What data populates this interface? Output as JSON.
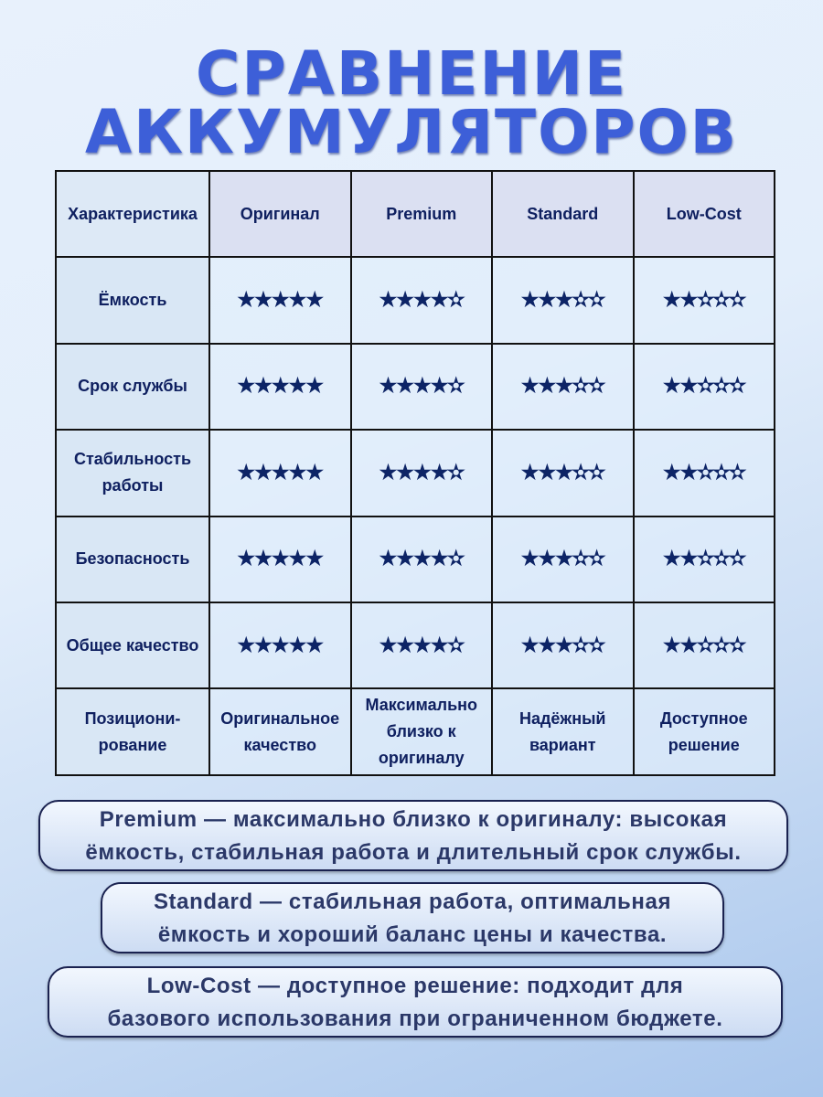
{
  "title": {
    "line1": "СРАВНЕНИЕ",
    "line2": "АККУМУЛЯТОРОВ"
  },
  "table": {
    "headers": [
      "Характеристика",
      "Оригинал",
      "Premium",
      "Standard",
      "Low-Cost"
    ],
    "rows": [
      {
        "label": "Ёмкость",
        "ratings": [
          5,
          4,
          3,
          2
        ]
      },
      {
        "label": "Срок службы",
        "ratings": [
          5,
          4,
          3,
          2
        ]
      },
      {
        "label": "Стабильность работы",
        "ratings": [
          5,
          4,
          3,
          2
        ]
      },
      {
        "label": "Безопасность",
        "ratings": [
          5,
          4,
          3,
          2
        ]
      },
      {
        "label": "Общее качество",
        "ratings": [
          5,
          4,
          3,
          2
        ]
      }
    ],
    "rating_max": 5,
    "positioning": {
      "label": "Позициони-рование",
      "values": [
        "Оригинальное качество",
        "Максимально близко к оригиналу",
        "Надёжный вариант",
        "Доступное решение"
      ]
    }
  },
  "notes": [
    {
      "line1": "Premium — максимально близко к оригиналу: высокая",
      "line2": "ёмкость, стабильная работа и длительный срок службы."
    },
    {
      "line1": "Standard — стабильная работа, оптимальная",
      "line2": "ёмкость и хороший баланс цены и качества."
    },
    {
      "line1": "Low-Cost — доступное решение: подходит для",
      "line2": "базового использования при ограниченном бюджете."
    }
  ],
  "colors": {
    "title": "#3d5fd8",
    "text": "#0f2060",
    "star": "#0d2466"
  }
}
